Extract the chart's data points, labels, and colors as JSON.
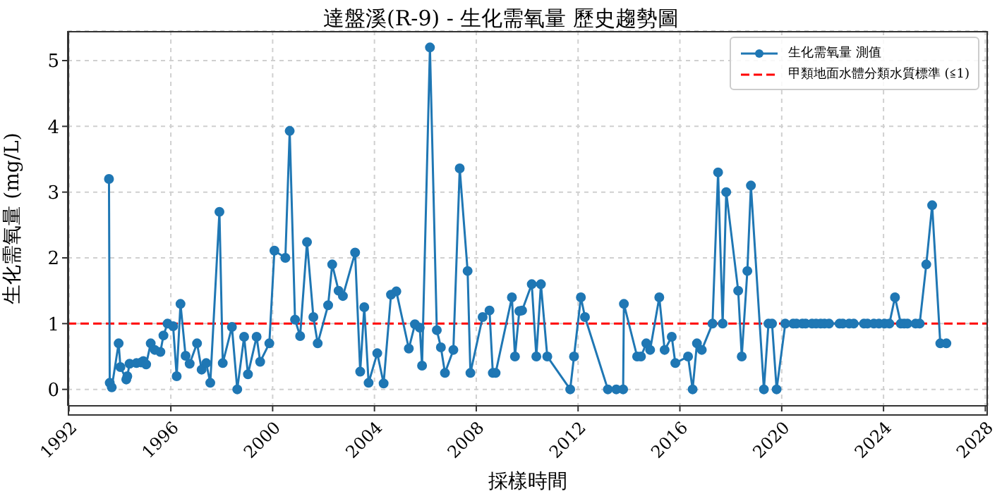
{
  "chart_data": {
    "type": "line",
    "title": "達盤溪(R-9) - 生化需氧量 歷史趨勢圖",
    "xlabel": "採樣時間",
    "ylabel": "生化需氧量 (mg/L)",
    "x": [
      1993.57,
      1993.6,
      1993.68,
      1993.95,
      1994.02,
      1994.25,
      1994.29,
      1994.38,
      1994.65,
      1994.83,
      1994.92,
      1995.03,
      1995.21,
      1995.37,
      1995.59,
      1995.71,
      1995.87,
      1996.09,
      1996.23,
      1996.38,
      1996.58,
      1996.74,
      1997.03,
      1997.21,
      1997.39,
      1997.55,
      1997.91,
      1998.04,
      1998.4,
      1998.61,
      1998.88,
      1999.03,
      1999.37,
      1999.51,
      1999.87,
      2000.07,
      2000.5,
      2000.67,
      2000.88,
      2001.08,
      2001.35,
      2001.6,
      2001.77,
      2002.18,
      2002.34,
      2002.59,
      2002.76,
      2003.24,
      2003.44,
      2003.6,
      2003.77,
      2004.11,
      2004.36,
      2004.65,
      2004.86,
      2005.35,
      2005.59,
      2005.78,
      2005.87,
      2006.18,
      2006.45,
      2006.61,
      2006.77,
      2007.1,
      2007.35,
      2007.66,
      2007.77,
      2008.25,
      2008.52,
      2008.65,
      2008.76,
      2009.4,
      2009.52,
      2009.69,
      2009.8,
      2010.18,
      2010.36,
      2010.54,
      2010.79,
      2011.69,
      2011.84,
      2012.11,
      2012.27,
      2013.17,
      2013.5,
      2013.77,
      2013.8,
      2014.32,
      2014.47,
      2014.68,
      2014.83,
      2015.19,
      2015.4,
      2015.68,
      2015.82,
      2016.32,
      2016.5,
      2016.67,
      2016.86,
      2017.28,
      2017.5,
      2017.68,
      2017.82,
      2018.29,
      2018.43,
      2018.65,
      2018.79,
      2019.3,
      2019.48,
      2019.62,
      2019.8,
      2020.14,
      2020.45,
      2020.58,
      2020.81,
      2020.94,
      2021.19,
      2021.35,
      2021.53,
      2021.68,
      2021.86,
      2022.27,
      2022.4,
      2022.65,
      2022.83,
      2023.23,
      2023.37,
      2023.62,
      2023.82,
      2024.04,
      2024.23,
      2024.45,
      2024.68,
      2024.81,
      2024.94,
      2025.26,
      2025.42,
      2025.68,
      2025.91,
      2026.23,
      2026.47
    ],
    "series": [
      {
        "name": "生化需氧量 測值",
        "color": "#1f77b4",
        "values": [
          3.2,
          0.1,
          0.03,
          0.7,
          0.34,
          0.15,
          0.2,
          0.39,
          0.4,
          0.41,
          0.43,
          0.38,
          0.7,
          0.6,
          0.57,
          0.82,
          1.0,
          0.96,
          0.2,
          1.3,
          0.51,
          0.39,
          0.7,
          0.3,
          0.4,
          0.1,
          2.7,
          0.4,
          0.95,
          0,
          0.8,
          0.23,
          0.8,
          0.42,
          0.7,
          2.11,
          2.0,
          3.93,
          1.06,
          0.81,
          2.24,
          1.1,
          0.7,
          1.28,
          1.9,
          1.5,
          1.42,
          2.08,
          0.27,
          1.25,
          0.1,
          0.55,
          0.09,
          1.44,
          1.49,
          0.62,
          0.99,
          0.94,
          0.36,
          5.2,
          0.9,
          0.64,
          0.25,
          0.6,
          3.36,
          1.8,
          0.25,
          1.1,
          1.2,
          0.25,
          0.25,
          1.4,
          0.5,
          1.19,
          1.2,
          1.6,
          0.5,
          1.6,
          0.5,
          0,
          0.5,
          1.4,
          1.1,
          0,
          0,
          0,
          1.3,
          0.5,
          0.5,
          0.7,
          0.6,
          1.4,
          0.6,
          0.8,
          0.4,
          0.5,
          0,
          0.7,
          0.6,
          1.0,
          3.3,
          1.0,
          3.0,
          1.5,
          0.5,
          1.8,
          3.1,
          0,
          1.0,
          1.0,
          0,
          1.0,
          1.0,
          1.0,
          1.0,
          1.0,
          1.0,
          1.0,
          1.0,
          1.0,
          1.0,
          1.0,
          1.0,
          1.0,
          1.0,
          1.0,
          1.0,
          1.0,
          1.0,
          1.0,
          1.0,
          1.4,
          1.0,
          1.0,
          1.0,
          1.0,
          1.0,
          1.9,
          2.8,
          0.7,
          0.7
        ]
      }
    ],
    "xlim": [
      1991.95,
      2028.1
    ],
    "xticks": [
      1992,
      1996,
      2000,
      2004,
      2008,
      2012,
      2016,
      2020,
      2024,
      2028
    ],
    "ylim": [
      -0.25,
      5.45
    ],
    "yticks": [
      0,
      1,
      2,
      3,
      4,
      5
    ],
    "ref_lines": [
      {
        "axis": "y",
        "value": 1,
        "label": "甲類地面水體分類水質標準 (≦1)",
        "color": "#ff0000",
        "line_style": "dashed"
      }
    ],
    "grid": true,
    "legend": "top right",
    "marker": "circle",
    "line_style": "solid"
  }
}
